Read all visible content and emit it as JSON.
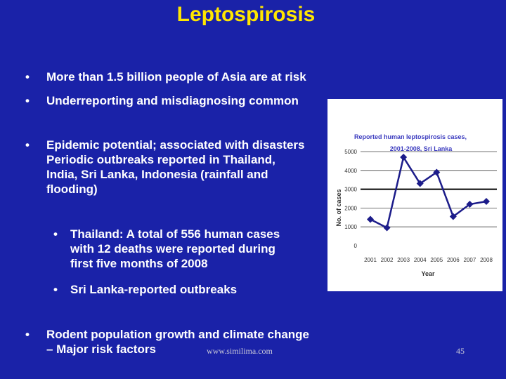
{
  "slide": {
    "title": "Leptospirosis",
    "bullets": [
      {
        "marker": "•",
        "lines": [
          "More than 1.5 billion people of Asia are at risk"
        ]
      },
      {
        "marker": "•",
        "lines": [
          "Underreporting and misdiagnosing common"
        ]
      },
      {
        "marker": "•",
        "lines": [
          "Epidemic potential; associated with disasters",
          "Periodic outbreaks reported in Thailand,",
          "India, Sri Lanka, Indonesia (rainfall and",
          "flooding)"
        ]
      },
      {
        "marker": "•",
        "lines": [
          "Thailand: A total of 556 human cases",
          "with 12 deaths were reported during",
          "first five months of 2008"
        ]
      },
      {
        "marker": "•",
        "lines": [
          "Sri Lanka-reported outbreaks"
        ]
      },
      {
        "marker": "•",
        "lines": [
          "Rodent population growth and climate change",
          "– Major risk factors"
        ]
      }
    ],
    "footer_url": "www.similima.com",
    "page_number": "45"
  },
  "chart_data": {
    "type": "line",
    "title": "Reported human leptospirosis cases,",
    "subtitle": "2001-2008, Sri Lanka",
    "xlabel": "Year",
    "ylabel": "No. of cases",
    "x": [
      "2001",
      "2002",
      "2003",
      "2004",
      "2005",
      "2006",
      "2007",
      "2008"
    ],
    "values": [
      1400,
      950,
      4700,
      3300,
      3900,
      1550,
      2200,
      2350
    ],
    "yticks": [
      "0",
      "1000",
      "2000",
      "3000",
      "4000",
      "5000"
    ],
    "ylim": [
      0,
      5000
    ],
    "reference_line": 3000,
    "colors": {
      "series": "#1c1c8a",
      "title": "#3b3bbf",
      "axis": "#444444"
    }
  }
}
